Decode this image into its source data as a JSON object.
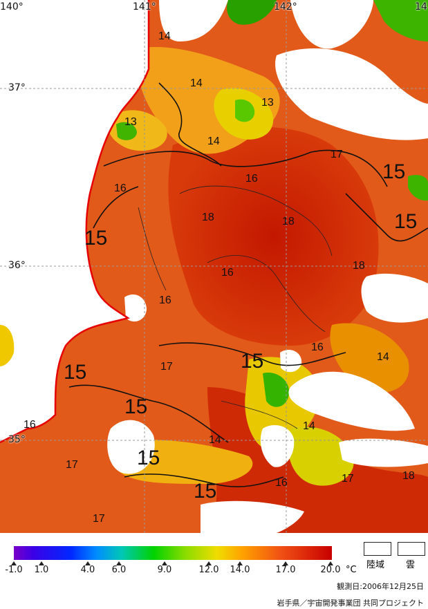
{
  "map": {
    "longitude_labels": [
      "140°",
      "141°",
      "142°",
      "14"
    ],
    "latitude_labels": [
      "37°",
      "36°",
      "35°"
    ],
    "isotherm_labels": [
      "14",
      "14",
      "13",
      "13",
      "14",
      "16",
      "17",
      "15",
      "16",
      "18",
      "18",
      "15",
      "15",
      "16",
      "18",
      "16",
      "15",
      "17",
      "16",
      "14",
      "15",
      "15",
      "14",
      "14",
      "15",
      "17",
      "16",
      "17",
      "18",
      "17",
      "15",
      "16"
    ]
  },
  "legend": {
    "ticks": [
      "-1.0",
      "1.0",
      "4.0",
      "6.0",
      "9.0",
      "12.0",
      "14.0",
      "17.0",
      "20.0"
    ],
    "unit": "°C",
    "land_label": "陸域",
    "cloud_label": "雲",
    "observation_date": "観測日:2006年12月25日",
    "credit": "岩手県／宇宙開発事業団 共同プロジェクト",
    "colors": {
      "coast_line": "#e60000",
      "warm": "#c81e00",
      "mid": "#e8641e",
      "cool": "#f0c800",
      "cold": "#34b400"
    }
  }
}
